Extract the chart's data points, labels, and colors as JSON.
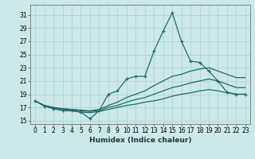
{
  "title": "",
  "xlabel": "Humidex (Indice chaleur)",
  "ylabel": "",
  "background_color": "#cce8e8",
  "line_color": "#1e6b6b",
  "xlim": [
    -0.5,
    23.5
  ],
  "ylim": [
    14.5,
    32.5
  ],
  "xticks": [
    0,
    1,
    2,
    3,
    4,
    5,
    6,
    7,
    8,
    9,
    10,
    11,
    12,
    13,
    14,
    15,
    16,
    17,
    18,
    19,
    20,
    21,
    22,
    23
  ],
  "yticks": [
    15,
    17,
    19,
    21,
    23,
    25,
    27,
    29,
    31
  ],
  "line1_x": [
    0,
    1,
    2,
    3,
    4,
    5,
    6,
    7,
    8,
    9,
    10,
    11,
    12,
    13,
    14,
    15,
    16,
    17,
    18,
    19,
    20,
    21,
    22,
    23
  ],
  "line1_y": [
    18.0,
    17.2,
    16.8,
    16.5,
    16.5,
    16.3,
    15.3,
    16.5,
    19.0,
    19.5,
    21.3,
    21.7,
    21.7,
    25.5,
    28.5,
    31.3,
    27.0,
    24.0,
    23.8,
    22.5,
    21.0,
    19.3,
    19.0,
    19.0
  ],
  "line2_x": [
    0,
    1,
    2,
    3,
    4,
    5,
    6,
    7,
    8,
    9,
    10,
    11,
    12,
    13,
    14,
    15,
    16,
    17,
    18,
    19,
    20,
    21,
    22,
    23
  ],
  "line2_y": [
    18.0,
    17.3,
    17.0,
    16.8,
    16.7,
    16.6,
    16.5,
    16.7,
    17.3,
    17.8,
    18.5,
    19.0,
    19.5,
    20.3,
    21.0,
    21.7,
    22.0,
    22.5,
    22.8,
    23.0,
    22.5,
    22.0,
    21.5,
    21.5
  ],
  "line3_x": [
    0,
    1,
    2,
    3,
    4,
    5,
    6,
    7,
    8,
    9,
    10,
    11,
    12,
    13,
    14,
    15,
    16,
    17,
    18,
    19,
    20,
    21,
    22,
    23
  ],
  "line3_y": [
    18.0,
    17.3,
    17.0,
    16.8,
    16.7,
    16.5,
    16.4,
    16.5,
    17.0,
    17.3,
    17.8,
    18.2,
    18.5,
    19.0,
    19.5,
    20.0,
    20.3,
    20.7,
    21.0,
    21.3,
    21.0,
    20.5,
    20.0,
    20.0
  ],
  "line4_x": [
    0,
    1,
    2,
    3,
    4,
    5,
    6,
    7,
    8,
    9,
    10,
    11,
    12,
    13,
    14,
    15,
    16,
    17,
    18,
    19,
    20,
    21,
    22,
    23
  ],
  "line4_y": [
    18.0,
    17.2,
    16.9,
    16.7,
    16.5,
    16.3,
    16.2,
    16.4,
    16.7,
    17.0,
    17.3,
    17.5,
    17.8,
    18.0,
    18.3,
    18.7,
    19.0,
    19.2,
    19.5,
    19.7,
    19.5,
    19.2,
    19.0,
    19.0
  ],
  "xlabel_fontsize": 6.5,
  "tick_fontsize": 5.5,
  "grid_color": "#aad0d0",
  "spine_color": "#777777"
}
